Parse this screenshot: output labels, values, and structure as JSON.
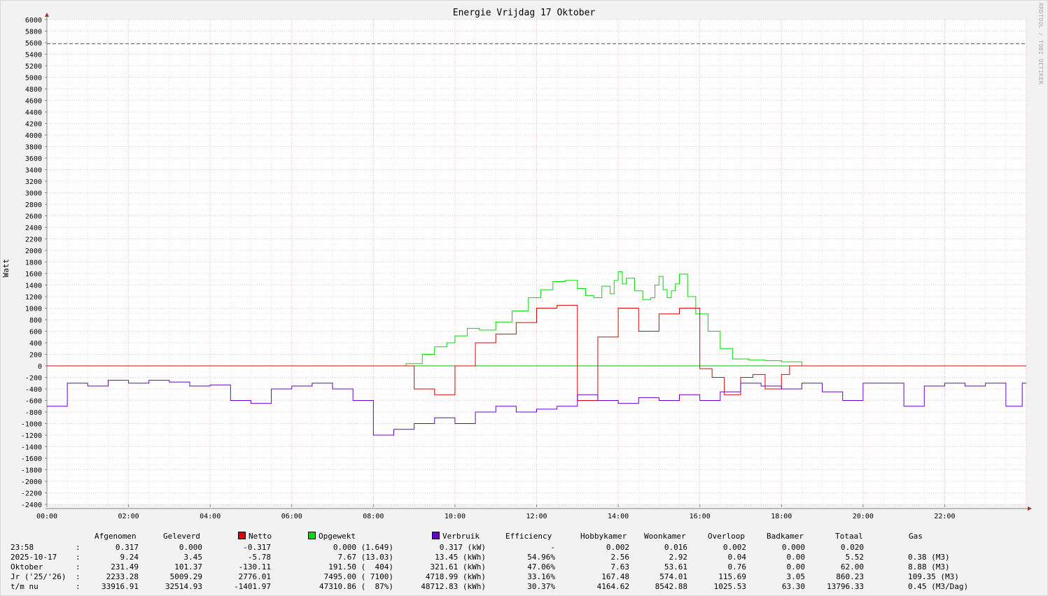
{
  "title": "Energie Vrijdag   17 Oktober",
  "watermark": "RRDTOOL / TOBI OETIKER",
  "ylabel": "Watt",
  "chart_data": {
    "type": "line",
    "title": "Energie Vrijdag   17 Oktober",
    "xlabel": "",
    "ylabel": "Watt",
    "ylim": [
      -2400,
      6000
    ],
    "xlim_hours": [
      0,
      24
    ],
    "y_ticks": [
      6000,
      5800,
      5600,
      5400,
      5200,
      5000,
      4800,
      4600,
      4400,
      4200,
      4000,
      3800,
      3600,
      3400,
      3200,
      3000,
      2800,
      2600,
      2400,
      2200,
      2000,
      1800,
      1600,
      1400,
      1200,
      1000,
      800,
      600,
      400,
      200,
      0,
      -200,
      -400,
      -600,
      -800,
      -1000,
      -1200,
      -1400,
      -1600,
      -1800,
      -2000,
      -2200,
      -2400
    ],
    "x_ticks": [
      "00:00",
      "02:00",
      "04:00",
      "06:00",
      "08:00",
      "10:00",
      "12:00",
      "14:00",
      "16:00",
      "18:00",
      "20:00",
      "22:00"
    ],
    "reference_line": {
      "value": 5580,
      "style": "dashed"
    },
    "grid": true,
    "series": [
      {
        "name": "Opgewekt",
        "color": "#00dd00",
        "x": [
          0.0,
          8.5,
          8.8,
          9.2,
          9.5,
          9.8,
          10.0,
          10.3,
          10.6,
          11.0,
          11.4,
          11.8,
          12.1,
          12.4,
          12.7,
          13.0,
          13.2,
          13.4,
          13.6,
          13.8,
          13.9,
          14.0,
          14.1,
          14.2,
          14.4,
          14.6,
          14.8,
          14.9,
          15.0,
          15.1,
          15.2,
          15.3,
          15.4,
          15.5,
          15.7,
          15.9,
          16.2,
          16.5,
          16.8,
          17.2,
          17.6,
          18.0,
          18.5,
          24.0
        ],
        "y": [
          0,
          0,
          40,
          200,
          330,
          400,
          520,
          650,
          620,
          760,
          950,
          1180,
          1320,
          1460,
          1480,
          1340,
          1220,
          1180,
          1380,
          1250,
          1480,
          1630,
          1420,
          1520,
          1300,
          1150,
          1180,
          1400,
          1550,
          1320,
          1180,
          1300,
          1420,
          1590,
          1200,
          900,
          600,
          300,
          120,
          100,
          90,
          70,
          0,
          0
        ]
      },
      {
        "name": "Netto",
        "color": "#dd0000",
        "x": [
          0.0,
          9.0,
          9.5,
          10.0,
          10.5,
          11.0,
          11.5,
          12.0,
          12.5,
          13.0,
          13.5,
          14.0,
          14.5,
          15.0,
          15.5,
          16.0,
          16.3,
          16.6,
          17.0,
          17.3,
          17.6,
          18.0,
          18.2,
          24.0
        ],
        "y": [
          0,
          -400,
          -500,
          0,
          400,
          550,
          750,
          1000,
          1050,
          -600,
          500,
          1000,
          600,
          900,
          1000,
          -50,
          -200,
          -500,
          -200,
          -150,
          -400,
          -150,
          0,
          0
        ]
      },
      {
        "name": "Verbruik",
        "color": "#6600cc",
        "x": [
          0.0,
          0.5,
          1.0,
          1.5,
          2.0,
          2.5,
          3.0,
          3.5,
          4.0,
          4.5,
          5.0,
          5.5,
          6.0,
          6.5,
          7.0,
          7.5,
          8.0,
          8.5,
          9.0,
          9.5,
          10.0,
          10.5,
          11.0,
          11.5,
          12.0,
          12.5,
          13.0,
          13.5,
          14.0,
          14.5,
          15.0,
          15.5,
          16.0,
          16.5,
          17.0,
          17.5,
          18.0,
          18.5,
          19.0,
          19.5,
          20.0,
          20.5,
          21.0,
          21.5,
          22.0,
          22.5,
          23.0,
          23.5,
          23.9
        ],
        "y": [
          -700,
          -300,
          -350,
          -250,
          -300,
          -250,
          -280,
          -350,
          -330,
          -600,
          -650,
          -400,
          -350,
          -300,
          -400,
          -600,
          -1200,
          -1100,
          -1000,
          -900,
          -1000,
          -800,
          -700,
          -800,
          -750,
          -700,
          -500,
          -600,
          -650,
          -550,
          -600,
          -500,
          -600,
          -450,
          -300,
          -350,
          -400,
          -300,
          -450,
          -600,
          -300,
          -300,
          -700,
          -350,
          -300,
          -350,
          -300,
          -700,
          -300
        ]
      }
    ],
    "table": {
      "headers": [
        "",
        "Afgenomen",
        "Geleverd",
        "Netto",
        "Opgewekt",
        "Verbruik",
        "Efficiency",
        "Hobbykamer",
        "Woonkamer",
        "Overloop",
        "Badkamer",
        "Totaal",
        "Gas"
      ],
      "rows": [
        [
          "23:58",
          "0.317",
          "0.000",
          "-0.317",
          "0.000 (1.649)",
          "0.317 (kW)",
          "-",
          "0.002",
          "0.016",
          "0.002",
          "0.000",
          "0.020",
          ""
        ],
        [
          "2025-10-17",
          "9.24",
          "3.45",
          "-5.78",
          "7.67 (13.03)",
          "13.45 (kWh)",
          "54.96%",
          "2.56",
          "2.92",
          "0.04",
          "0.00",
          "5.52",
          "0.38 (M3)"
        ],
        [
          "Oktober",
          "231.49",
          "101.37",
          "-130.11",
          "191.50 (  404)",
          "321.61 (kWh)",
          "47.06%",
          "7.63",
          "53.61",
          "0.76",
          "0.00",
          "62.00",
          "8.88 (M3)"
        ],
        [
          "Jr ('25/'26)",
          "2233.28",
          "5009.29",
          "2776.01",
          "7495.00 ( 7100)",
          "4718.99 (kWh)",
          "33.16%",
          "167.48",
          "574.01",
          "115.69",
          "3.05",
          "860.23",
          "109.35 (M3)"
        ],
        [
          "t/m nu",
          "33916.91",
          "32514.93",
          "-1401.97",
          "47310.86 (  87%)",
          "48712.83 (kWh)",
          "30.37%",
          "4164.62",
          "8542.88",
          "1025.53",
          "63.30",
          "13796.33",
          "0.45 (M3/Dag)"
        ]
      ]
    }
  }
}
